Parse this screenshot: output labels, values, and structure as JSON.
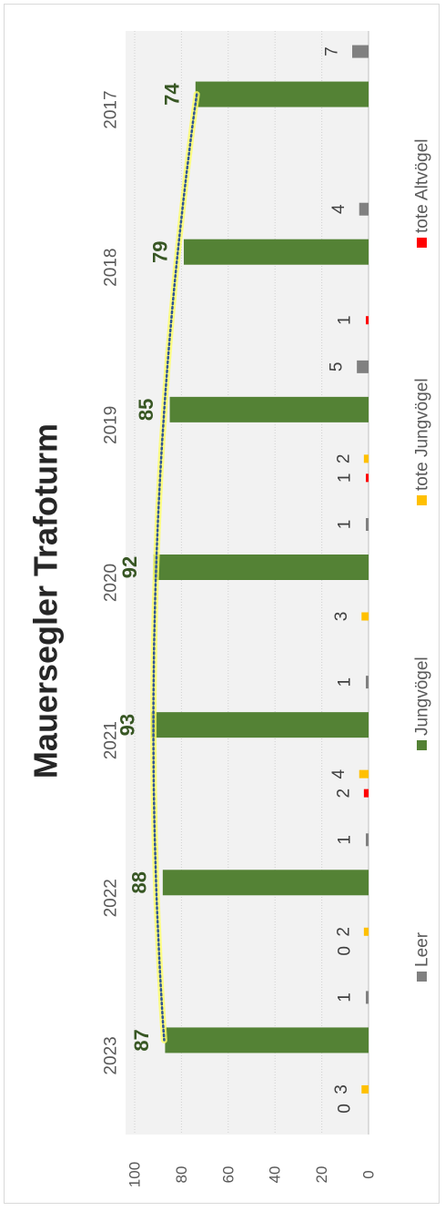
{
  "chart_data": {
    "type": "bar",
    "title": "Mauersegler Trafoturm",
    "orientation": "rotated-90",
    "categories": [
      "2017",
      "2018",
      "2019",
      "2020",
      "2021",
      "2022",
      "2023"
    ],
    "series": [
      {
        "name": "Leer",
        "color": "#808080",
        "values": [
          7,
          4,
          5,
          1,
          1,
          1,
          1
        ],
        "label_color": "#404040"
      },
      {
        "name": "Jungvögel",
        "color": "#548235",
        "values": [
          74,
          79,
          85,
          92,
          93,
          88,
          87
        ],
        "label_color": "#375623",
        "label_bold": true
      },
      {
        "name": "tote Jungvögel",
        "color": "#ffc000",
        "values": [
          null,
          null,
          2,
          3,
          4,
          2,
          3
        ],
        "label_color": "#404040"
      },
      {
        "name": "tote Altvögel",
        "color": "#ff0000",
        "values": [
          null,
          1,
          1,
          null,
          2,
          0,
          0
        ],
        "label_color": "#404040"
      }
    ],
    "trendline": {
      "series": "Jungvögel",
      "type": "polynomial",
      "line_color": "#2f5597",
      "glow_color": "#ffff66",
      "dotted": true
    },
    "ylim": [
      0,
      100
    ],
    "yticks": [
      "0",
      "20",
      "40",
      "60",
      "80",
      "100"
    ],
    "grid": true,
    "legend_position": "bottom"
  }
}
